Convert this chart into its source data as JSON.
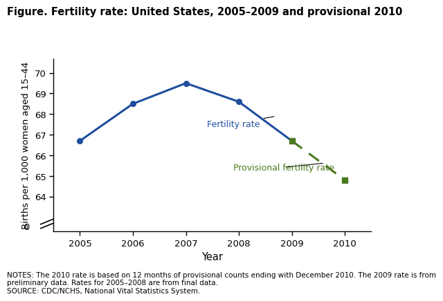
{
  "title": "Figure. Fertility rate: United States, 2005–2009 and provisional 2010",
  "xlabel": "Year",
  "ylabel": "Births per 1,000 women aged 15–44",
  "solid_years": [
    2005,
    2006,
    2007,
    2008,
    2009
  ],
  "solid_values": [
    66.7,
    68.5,
    69.5,
    68.6,
    66.7
  ],
  "dashed_years": [
    2009,
    2010
  ],
  "dashed_values": [
    66.7,
    64.8
  ],
  "solid_color": "#1f4e9e",
  "dashed_color": "#4a7a1e",
  "xticks": [
    2005,
    2006,
    2007,
    2008,
    2009,
    2010
  ],
  "yticks": [
    64,
    65,
    66,
    67,
    68,
    69,
    70
  ],
  "label_fertility": "Fertility rate",
  "label_provisional": "Provisional fertility rate",
  "notes_line1": "NOTES: The 2010 rate is based on 12 months of provisional counts ending with December 2010. The 2009 rate is from",
  "notes_line2": "preliminary data. Rates for 2005–2008 are from final data.",
  "notes_line3": "SOURCE: CDC/NCHS, National Vital Statistics System.",
  "background_color": "#ffffff"
}
